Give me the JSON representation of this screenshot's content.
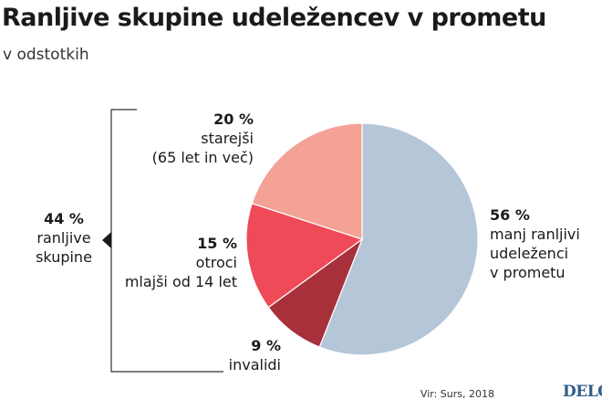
{
  "title": "Ranljive skupine udeležencev v prometu",
  "subtitle": "v odstotkih",
  "colors": {
    "manj_ranljivi": "#b6c6d9",
    "invalidi": "#a8303a",
    "otroci": "#ef4a57",
    "starejsi": "#f4a196",
    "bracket": "#333333"
  },
  "chart_data": {
    "type": "pie",
    "unit": "%",
    "slices": [
      {
        "key": "manj_ranljivi",
        "label": [
          "manj ranljivi",
          "udeleženci",
          "v prometu"
        ],
        "value": 56,
        "value_label": "56 %"
      },
      {
        "key": "invalidi",
        "label": [
          "invalidi"
        ],
        "value": 9,
        "value_label": "9 %"
      },
      {
        "key": "otroci",
        "label": [
          "otroci",
          "mlajši od 14 let"
        ],
        "value": 15,
        "value_label": "15 %"
      },
      {
        "key": "starejsi",
        "label": [
          "starejši",
          "(65 let in več)"
        ],
        "value": 20,
        "value_label": "20 %"
      }
    ],
    "group": {
      "value_label": "44 %",
      "label": [
        "ranljive",
        "skupine"
      ]
    }
  },
  "source": "Vir: Surs, 2018",
  "logo": "DELO"
}
